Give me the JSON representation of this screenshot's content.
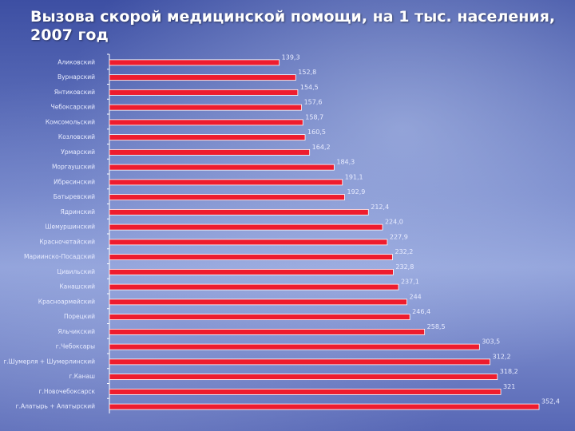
{
  "title": "Вызова скорой медицинской помощи, на 1 тыс. населения, 2007 год",
  "colors": {
    "bar": "#ee1c2e",
    "bar_edge": "#ffffff",
    "axis": "#ffffff"
  },
  "chart_data": {
    "type": "bar",
    "orientation": "horizontal",
    "xlim": [
      0,
      352.4
    ],
    "grid": false,
    "legend": "none",
    "categories": [
      "Аликовский",
      "Вурнарский",
      "Янтиковский",
      "Чебоксарский",
      "Комсомольский",
      "Козловский",
      "Урмарский",
      "Моргаушский",
      "Ибресинский",
      "Батыревский",
      "Ядринский",
      "Шемуршинский",
      "Красночетайский",
      "Мариинско-Посадский",
      "Цивильский",
      "Канашский",
      "Красноармейский",
      "Порецкий",
      "Яльчикский",
      "г.Чебоксары",
      "г.Шумерля + Шумерлинский",
      "г.Канаш",
      "г.Новочебоксарск",
      "г.Алатырь + Алатырский"
    ],
    "values": [
      139.3,
      152.8,
      154.5,
      157.6,
      158.7,
      160.5,
      164.2,
      184.3,
      191.1,
      192.9,
      212.4,
      224.0,
      227.9,
      232.2,
      232.8,
      237.1,
      244,
      246.4,
      258.5,
      303.5,
      312.2,
      318.2,
      321,
      352.4
    ],
    "value_labels": [
      "139,3",
      "152,8",
      "154,5",
      "157,6",
      "158,7",
      "160,5",
      "164,2",
      "184,3",
      "191,1",
      "192,9",
      "212,4",
      "224,0",
      "227,9",
      "232,2",
      "232,8",
      "237,1",
      "244",
      "246,4",
      "258,5",
      "303,5",
      "312,2",
      "318,2",
      "321",
      "352,4"
    ]
  }
}
